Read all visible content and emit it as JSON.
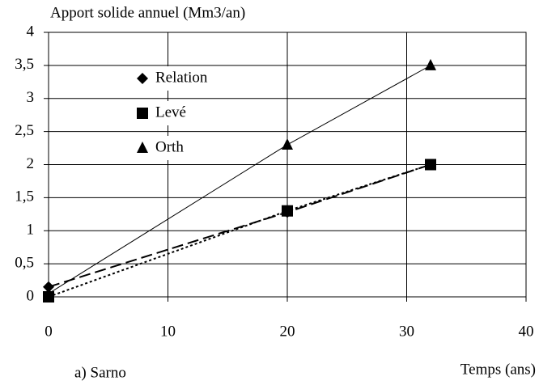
{
  "chart_data": {
    "type": "line",
    "title": "Apport solide annuel (Mm3/an)",
    "x_label": "Temps (ans)",
    "annotation": "a) Sarno",
    "series": [
      {
        "name": "Relation",
        "color": "#000000",
        "marker": "diamond",
        "dash": "14 6",
        "x": [
          0,
          20,
          32
        ],
        "values": [
          0.15,
          1.28,
          2.0
        ]
      },
      {
        "name": "Levé",
        "color": "#000000",
        "marker": "square",
        "dash": "3 3",
        "x": [
          0,
          20,
          32
        ],
        "values": [
          0,
          1.3,
          2.0
        ]
      },
      {
        "name": "Orth",
        "color": "#000000",
        "marker": "triangle",
        "dash": "none",
        "x": [
          0,
          20,
          32
        ],
        "values": [
          0.05,
          2.3,
          3.5
        ]
      }
    ],
    "xlim": [
      0,
      40
    ],
    "xticks": [
      0,
      10,
      20,
      30,
      40
    ],
    "ylim": [
      0,
      4
    ],
    "yticks": [
      0,
      {
        "value": 0.5,
        "label": "0,5"
      },
      1,
      {
        "value": 1.5,
        "label": "1,5"
      },
      2,
      {
        "value": 2.5,
        "label": "2,5"
      },
      3,
      {
        "value": 3.5,
        "label": "3,5"
      },
      4
    ],
    "grid": true,
    "legend": "upper-left"
  }
}
